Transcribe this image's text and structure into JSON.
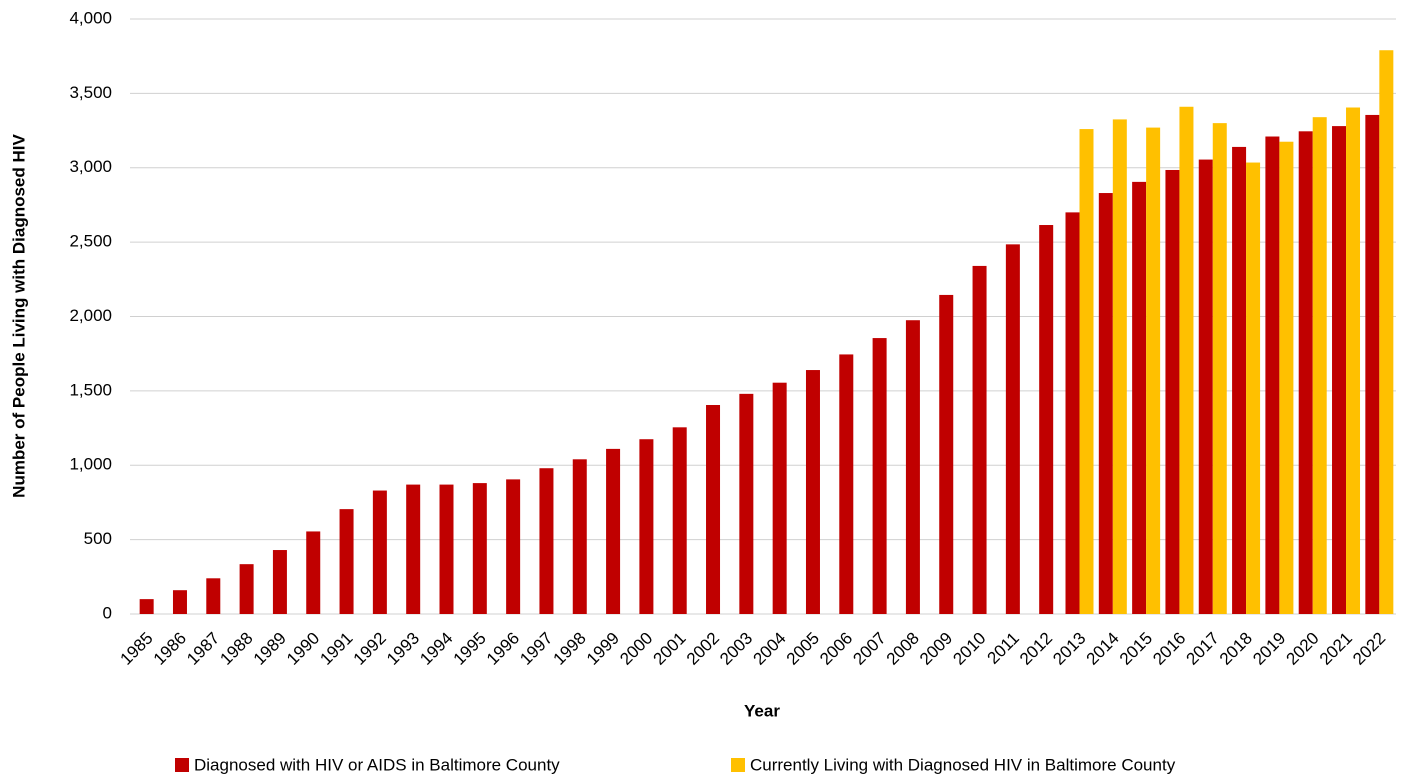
{
  "chart_data": {
    "type": "bar",
    "x_label": "Year",
    "y_label": "Number of People Living with Diagnosed HIV",
    "categories": [
      "1985",
      "1986",
      "1987",
      "1988",
      "1989",
      "1990",
      "1991",
      "1992",
      "1993",
      "1994",
      "1995",
      "1996",
      "1997",
      "1998",
      "1999",
      "2000",
      "2001",
      "2002",
      "2003",
      "2004",
      "2005",
      "2006",
      "2007",
      "2008",
      "2009",
      "2010",
      "2011",
      "2012",
      "2013",
      "2014",
      "2015",
      "2016",
      "2017",
      "2018",
      "2019",
      "2020",
      "2021",
      "2022"
    ],
    "series": [
      {
        "name": "Diagnosed with HIV or AIDS in Baltimore County",
        "color": "#c00000",
        "values": [
          100,
          160,
          240,
          335,
          430,
          555,
          705,
          830,
          870,
          870,
          880,
          905,
          980,
          1040,
          1110,
          1175,
          1255,
          1405,
          1480,
          1555,
          1640,
          1745,
          1855,
          1975,
          2145,
          2340,
          2485,
          2615,
          2700,
          2830,
          2905,
          2985,
          3055,
          3140,
          3210,
          3245,
          3280,
          3355
        ]
      },
      {
        "name": "Currently Living with Diagnosed HIV in Baltimore County",
        "color": "#ffc000",
        "values": [
          null,
          null,
          null,
          null,
          null,
          null,
          null,
          null,
          null,
          null,
          null,
          null,
          null,
          null,
          null,
          null,
          null,
          null,
          null,
          null,
          null,
          null,
          null,
          null,
          null,
          null,
          null,
          null,
          3260,
          3325,
          3270,
          3410,
          3300,
          3035,
          3175,
          3340,
          3405,
          3790
        ]
      }
    ],
    "ylim": [
      0,
      4000
    ],
    "yticks": [
      0,
      500,
      {
        "value": 1000,
        "label": "1,000"
      },
      {
        "value": 1500,
        "label": "1,500"
      },
      {
        "value": 2000,
        "label": "2,000"
      },
      {
        "value": 2500,
        "label": "2,500"
      },
      {
        "value": 3000,
        "label": "3,000"
      },
      {
        "value": 3500,
        "label": "3,500"
      },
      {
        "value": 4000,
        "label": "4,000"
      }
    ],
    "grid": true,
    "legend": "bottom"
  }
}
